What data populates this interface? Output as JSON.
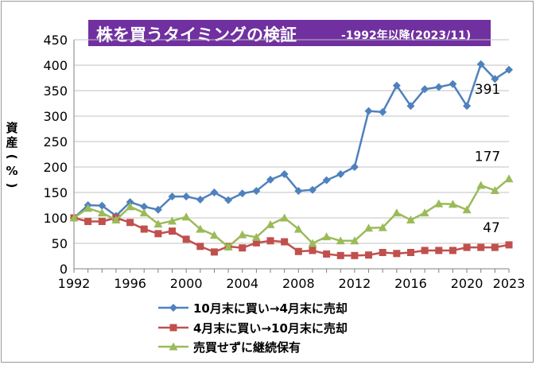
{
  "title": {
    "main": "株を買うタイミングの検証",
    "sub": "-1992年以降(2023/11)"
  },
  "colors": {
    "title_bg": "#7030a0",
    "series_oct_apr": "#4f81bd",
    "series_apr_oct": "#c0504d",
    "series_hold": "#9bbb59",
    "grid": "#c0c0c0"
  },
  "chart_data": {
    "type": "line",
    "title": "株を買うタイミングの検証",
    "subtitle": "-1992年以降(2023/11)",
    "xlabel": "",
    "ylabel": "資産(%)",
    "ylim": [
      0,
      450
    ],
    "yticks": [
      0,
      50,
      100,
      150,
      200,
      250,
      300,
      350,
      400,
      450
    ],
    "xlim": [
      1992,
      2023
    ],
    "xticks": [
      "1992",
      "1996",
      "2000",
      "2004",
      "2008",
      "2012",
      "2016",
      "2020",
      "2023"
    ],
    "grid": "horizontal",
    "legend_position": "bottom",
    "x": [
      1992,
      1993,
      1994,
      1995,
      1996,
      1997,
      1998,
      1999,
      2000,
      2001,
      2002,
      2003,
      2004,
      2005,
      2006,
      2007,
      2008,
      2009,
      2010,
      2011,
      2012,
      2013,
      2014,
      2015,
      2016,
      2017,
      2018,
      2019,
      2020,
      2021,
      2022,
      2023
    ],
    "series": [
      {
        "name": "10月末に買い→4月末に売却",
        "marker": "diamond",
        "values": [
          100,
          125,
          124,
          104,
          131,
          122,
          116,
          142,
          142,
          136,
          150,
          135,
          148,
          153,
          175,
          186,
          153,
          155,
          174,
          186,
          200,
          310,
          308,
          360,
          320,
          353,
          357,
          363,
          320,
          402,
          373,
          391
        ],
        "end_label": "391"
      },
      {
        "name": "4月末に買い→10月末に売却",
        "marker": "square",
        "values": [
          100,
          93,
          93,
          100,
          91,
          78,
          69,
          74,
          58,
          44,
          33,
          44,
          41,
          51,
          55,
          53,
          34,
          36,
          29,
          26,
          26,
          27,
          32,
          30,
          32,
          36,
          36,
          36,
          42,
          42,
          42,
          47
        ],
        "end_label": "47"
      },
      {
        "name": "売買せずに継続保有",
        "marker": "triangle",
        "values": [
          100,
          119,
          110,
          96,
          122,
          110,
          88,
          94,
          102,
          78,
          66,
          43,
          67,
          62,
          87,
          100,
          78,
          50,
          63,
          55,
          55,
          80,
          81,
          110,
          96,
          110,
          128,
          127,
          116,
          164,
          154,
          177
        ],
        "end_label": "177"
      }
    ]
  }
}
